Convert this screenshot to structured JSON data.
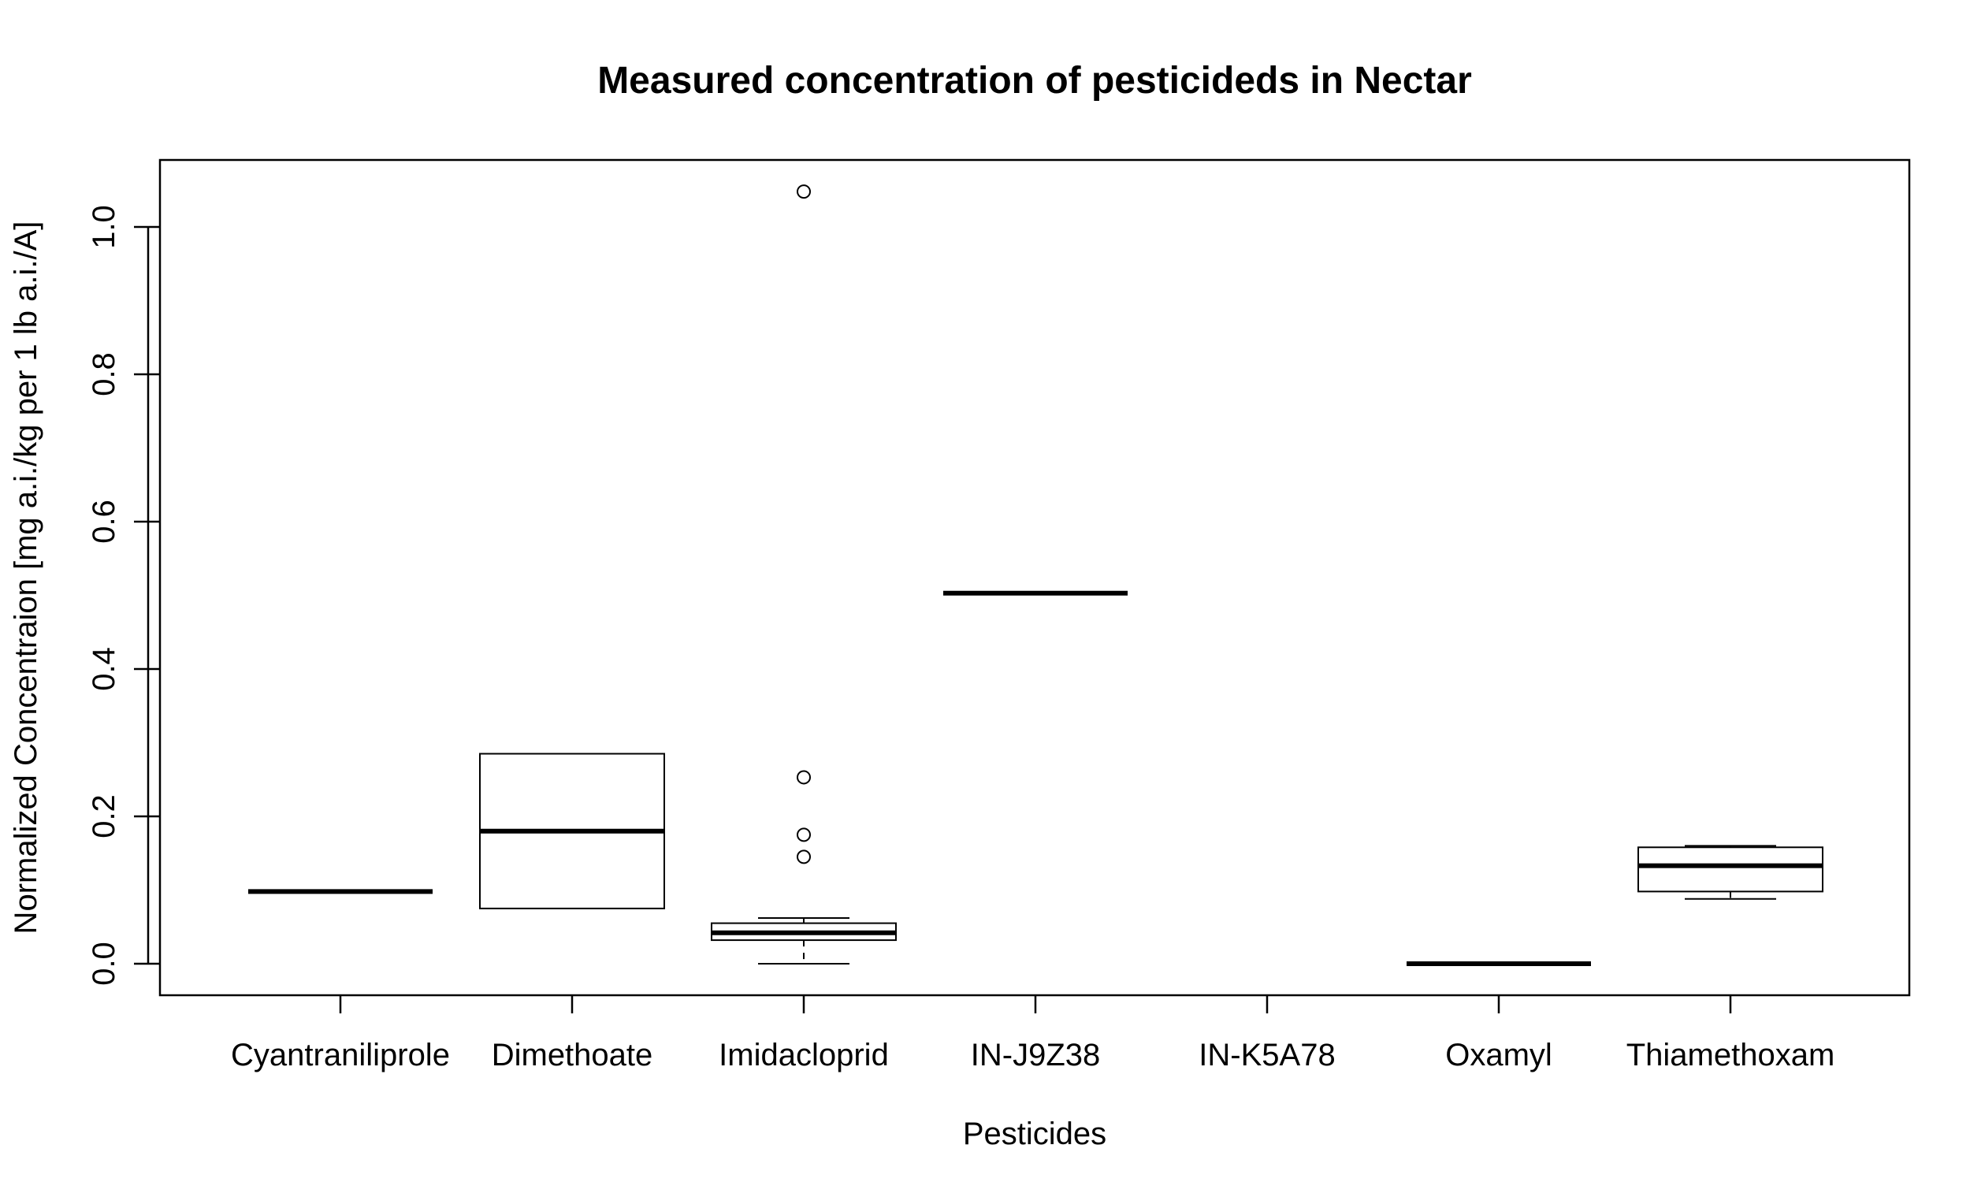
{
  "chart_data": {
    "type": "boxplot",
    "title": "Measured concentration of pesticideds in Nectar",
    "xlabel": "Pesticides",
    "ylabel": "Normalized Concentraion [mg a.i./kg per 1 lb a.i./A]",
    "ylim": [
      -0.04,
      1.09
    ],
    "yticks": [
      "0.0",
      "0.2",
      "0.4",
      "0.6",
      "0.8",
      "1.0"
    ],
    "grid": false,
    "legend": "none",
    "categories": [
      "Cyantraniliprole",
      "Dimethoate",
      "Imidacloprid",
      "IN-J9Z38",
      "IN-K5A78",
      "Oxamyl",
      "Thiamethoxam"
    ],
    "boxes": [
      {
        "category": "Cyantraniliprole",
        "min": 0.098,
        "q1": 0.098,
        "median": 0.098,
        "q3": 0.098,
        "max": 0.098,
        "outliers": []
      },
      {
        "category": "Dimethoate",
        "min": 0.075,
        "q1": 0.075,
        "median": 0.18,
        "q3": 0.285,
        "max": 0.285,
        "outliers": []
      },
      {
        "category": "Imidacloprid",
        "min": 0.0,
        "q1": 0.032,
        "median": 0.042,
        "q3": 0.055,
        "max": 0.062,
        "outliers": [
          0.145,
          0.175,
          0.253,
          1.048
        ]
      },
      {
        "category": "IN-J9Z38",
        "min": 0.503,
        "q1": 0.503,
        "median": 0.503,
        "q3": 0.503,
        "max": 0.503,
        "outliers": []
      },
      {
        "category": "IN-K5A78",
        "empty": true
      },
      {
        "category": "Oxamyl",
        "min": 0.0,
        "q1": 0.0,
        "median": 0.0,
        "q3": 0.0,
        "max": 0.0,
        "outliers": []
      },
      {
        "category": "Thiamethoxam",
        "min": 0.088,
        "q1": 0.098,
        "median": 0.133,
        "q3": 0.158,
        "max": 0.16,
        "outliers": []
      }
    ]
  }
}
